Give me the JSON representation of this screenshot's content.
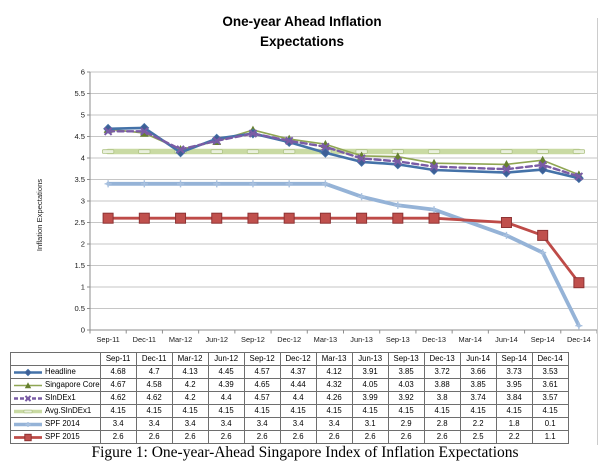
{
  "chart_data": {
    "type": "line",
    "title_lines": [
      "One-year Ahead Inflation",
      "Expectations"
    ],
    "ylabel": "Inflation Expectations",
    "ylim": [
      0,
      6
    ],
    "ytick_step": 0.5,
    "grid": true,
    "legend_position": "table-row-keys-left",
    "categories": [
      "Sep-11",
      "Dec-11",
      "Mar-12",
      "Jun-12",
      "Sep-12",
      "Dec-12",
      "Mar-13",
      "Jun-13",
      "Sep-13",
      "Dec-13",
      "Mar-14",
      "Jun-14",
      "Sep-14",
      "Dec-14"
    ],
    "series": [
      {
        "name": "Headline",
        "color": "#4472A8",
        "marker": "diamond",
        "marker_color": "#3E5F96",
        "line_style": "solid",
        "line_width": 2.6,
        "values": [
          4.68,
          4.7,
          4.13,
          4.45,
          4.57,
          4.37,
          4.12,
          3.91,
          3.85,
          3.72,
          null,
          3.66,
          3.73,
          3.53
        ]
      },
      {
        "name": "Singapore Core",
        "color": "#8FA653",
        "marker": "triangle",
        "marker_color": "#66802F",
        "line_style": "solid",
        "line_width": 1.6,
        "values": [
          4.67,
          4.58,
          4.2,
          4.39,
          4.65,
          4.44,
          4.32,
          4.05,
          4.03,
          3.88,
          null,
          3.85,
          3.95,
          3.61
        ]
      },
      {
        "name": "SInDEx1",
        "color": "#7A5CA5",
        "marker": "x",
        "marker_color": "#7A5CA5",
        "line_style": "dashed",
        "line_width": 2.4,
        "values": [
          4.62,
          4.62,
          4.2,
          4.4,
          4.57,
          4.4,
          4.26,
          3.99,
          3.92,
          3.8,
          null,
          3.74,
          3.84,
          3.57
        ]
      },
      {
        "name": "Avg.SInDEx1",
        "color": "#C9DAA3",
        "marker": "dash",
        "marker_color": "#E9F0DC",
        "line_style": "solid",
        "line_width": 5.5,
        "values": [
          4.15,
          4.15,
          4.15,
          4.15,
          4.15,
          4.15,
          4.15,
          4.15,
          4.15,
          4.15,
          null,
          4.15,
          4.15,
          4.15
        ]
      },
      {
        "name": "SPF 2014",
        "color": "#95B3D7",
        "marker": "plus",
        "marker_color": "#A9C1DF",
        "line_style": "solid",
        "line_width": 3.8,
        "values": [
          3.4,
          3.4,
          3.4,
          3.4,
          3.4,
          3.4,
          3.4,
          3.1,
          2.9,
          2.8,
          null,
          2.2,
          1.8,
          0.1
        ]
      },
      {
        "name": "SPF 2015",
        "color": "#BE4B48",
        "marker": "square",
        "marker_color": "#C0504D",
        "line_style": "solid",
        "line_width": 2.8,
        "values": [
          2.6,
          2.6,
          2.6,
          2.6,
          2.6,
          2.6,
          2.6,
          2.6,
          2.6,
          2.6,
          null,
          2.5,
          2.2,
          1.1
        ]
      }
    ]
  },
  "table": {
    "columns": [
      "Sep-11",
      "Dec-11",
      "Mar-12",
      "Jun-12",
      "Sep-12",
      "Dec-12",
      "Mar-13",
      "Jun-13",
      "Sep-13",
      "Dec-13",
      "Jun-14",
      "Sep-14",
      "Dec-14"
    ],
    "rows": [
      {
        "label": "Headline",
        "values": [
          "4.68",
          "4.7",
          "4.13",
          "4.45",
          "4.57",
          "4.37",
          "4.12",
          "3.91",
          "3.85",
          "3.72",
          "3.66",
          "3.73",
          "3.53"
        ]
      },
      {
        "label": "Singapore Core",
        "values": [
          "4.67",
          "4.58",
          "4.2",
          "4.39",
          "4.65",
          "4.44",
          "4.32",
          "4.05",
          "4.03",
          "3.88",
          "3.85",
          "3.95",
          "3.61"
        ]
      },
      {
        "label": "SInDEx1",
        "values": [
          "4.62",
          "4.62",
          "4.2",
          "4.4",
          "4.57",
          "4.4",
          "4.26",
          "3.99",
          "3.92",
          "3.8",
          "3.74",
          "3.84",
          "3.57"
        ]
      },
      {
        "label": "Avg.SInDEx1",
        "values": [
          "4.15",
          "4.15",
          "4.15",
          "4.15",
          "4.15",
          "4.15",
          "4.15",
          "4.15",
          "4.15",
          "4.15",
          "4.15",
          "4.15",
          "4.15"
        ]
      },
      {
        "label": "SPF 2014",
        "values": [
          "3.4",
          "3.4",
          "3.4",
          "3.4",
          "3.4",
          "3.4",
          "3.4",
          "3.1",
          "2.9",
          "2.8",
          "2.2",
          "1.8",
          "0.1"
        ]
      },
      {
        "label": "SPF 2015",
        "values": [
          "2.6",
          "2.6",
          "2.6",
          "2.6",
          "2.6",
          "2.6",
          "2.6",
          "2.6",
          "2.6",
          "2.6",
          "2.5",
          "2.2",
          "1.1"
        ]
      }
    ]
  },
  "caption": "Figure 1: One-year-Ahead Singapore Index of Inflation Expectations"
}
